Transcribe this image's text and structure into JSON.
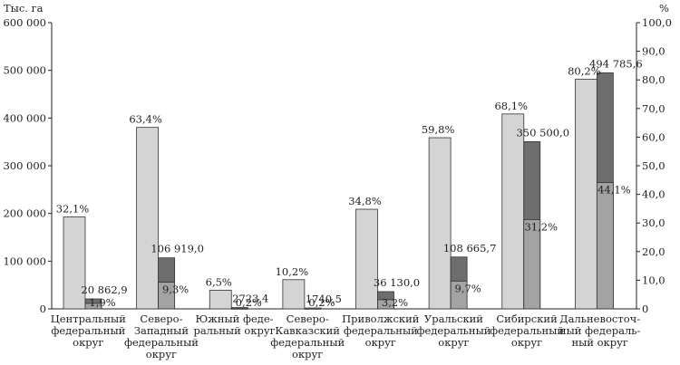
{
  "chart_data": {
    "type": "bar",
    "left_axis_label": "Тыс. га",
    "right_axis_label": "%",
    "left_ticks": [
      "0",
      "100 000",
      "200 000",
      "300 000",
      "400 000",
      "500 000",
      "600 000"
    ],
    "right_ticks": [
      "0",
      "10,0",
      "20,0",
      "30,0",
      "40,0",
      "50,0",
      "60,0",
      "70,0",
      "80,0",
      "90,0",
      "100,0"
    ],
    "ylim_left": [
      0,
      600000
    ],
    "ylim_right": [
      0,
      100
    ],
    "colors": {
      "share_bar": "#d4d4d4",
      "abs_bar": "#6e6e6e",
      "share2_bar": "#a3a3a3",
      "stroke": "#333333"
    },
    "categories": [
      {
        "name_lines": [
          "Центральный",
          "федеральный",
          "округ"
        ],
        "share_pct": 32.1,
        "share_label": "32,1%",
        "abs_value": 20862.9,
        "abs_label": "20 862,9",
        "share2_pct": 1.9,
        "share2_label": "1,9%"
      },
      {
        "name_lines": [
          "Северо-",
          "Западный",
          "федеральный",
          "округ"
        ],
        "share_pct": 63.4,
        "share_label": "63,4%",
        "abs_value": 106919.0,
        "abs_label": "106 919,0",
        "share2_pct": 9.3,
        "share2_label": "9,3%"
      },
      {
        "name_lines": [
          "Южный феде-",
          "ральный округ"
        ],
        "share_pct": 6.5,
        "share_label": "6,5%",
        "abs_value": 2723.4,
        "abs_label": "2723,4",
        "share2_pct": 0.2,
        "share2_label": "0,2%"
      },
      {
        "name_lines": [
          "Северо-",
          "Кавказский",
          "федеральный",
          "округ"
        ],
        "share_pct": 10.2,
        "share_label": "10,2%",
        "abs_value": 1740.5,
        "abs_label": "1740,5",
        "share2_pct": 0.2,
        "share2_label": "0,2%"
      },
      {
        "name_lines": [
          "Приволжский",
          "федеральный",
          "округ"
        ],
        "share_pct": 34.8,
        "share_label": "34,8%",
        "abs_value": 36130.0,
        "abs_label": "36 130,0",
        "share2_pct": 3.2,
        "share2_label": "3,2%"
      },
      {
        "name_lines": [
          "Уральский",
          "федеральный",
          "округ"
        ],
        "share_pct": 59.8,
        "share_label": "59,8%",
        "abs_value": 108665.7,
        "abs_label": "108 665,7",
        "share2_pct": 9.7,
        "share2_label": "9,7%"
      },
      {
        "name_lines": [
          "Сибирский",
          "федеральный",
          "округ"
        ],
        "share_pct": 68.1,
        "share_label": "68,1%",
        "abs_value": 350500.0,
        "abs_label": "350 500,0",
        "share2_pct": 31.2,
        "share2_label": "31,2%"
      },
      {
        "name_lines": [
          "Дальневосточ-",
          "ный федераль-",
          "ный округ"
        ],
        "share_pct": 80.2,
        "share_label": "80,2%",
        "abs_value": 494785.6,
        "abs_label": "494 785,6",
        "share2_pct": 44.1,
        "share2_label": "44,1%"
      }
    ]
  }
}
